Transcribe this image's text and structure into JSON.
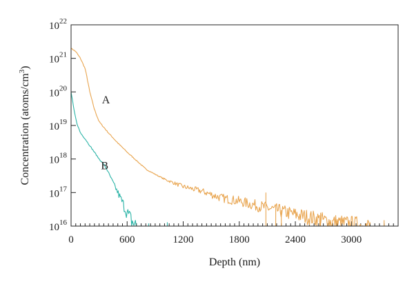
{
  "chart_data": {
    "type": "line",
    "xlabel": "Depth (nm)",
    "ylabel": "Concentration (atoms/cm3)",
    "ylabel_parts": {
      "main": "Concentration (atoms/cm",
      "sup": "3",
      "end": ")"
    },
    "x_scale": "linear",
    "y_scale": "log",
    "xlim": [
      0,
      3500
    ],
    "ylim": [
      1e+16,
      1e+22
    ],
    "xticks": [
      {
        "value": 0,
        "label": "0"
      },
      {
        "value": 600,
        "label": "600"
      },
      {
        "value": 1200,
        "label": "1200"
      },
      {
        "value": 1800,
        "label": "1800"
      },
      {
        "value": 2400,
        "label": "2400"
      },
      {
        "value": 3000,
        "label": "3000"
      }
    ],
    "yticks": [
      {
        "value": 1e+16,
        "base": "10",
        "exp": "16"
      },
      {
        "value": 1e+17,
        "base": "10",
        "exp": "17"
      },
      {
        "value": 1e+18,
        "base": "10",
        "exp": "18"
      },
      {
        "value": 1e+19,
        "base": "10",
        "exp": "19"
      },
      {
        "value": 1e+20,
        "base": "10",
        "exp": "20"
      },
      {
        "value": 1e+21,
        "base": "10",
        "exp": "21"
      },
      {
        "value": 1e+22,
        "base": "10",
        "exp": "22"
      }
    ],
    "grid": false,
    "series": [
      {
        "name": "A",
        "color": "#e8a44e",
        "label_at": {
          "x": 330,
          "y": 4.5e+19
        },
        "points": [
          [
            0,
            2e+21
          ],
          [
            50,
            1.6e+21
          ],
          [
            100,
            1e+21
          ],
          [
            150,
            5e+20
          ],
          [
            180,
            2e+20
          ],
          [
            200,
            1e+20
          ],
          [
            250,
            3e+19
          ],
          [
            300,
            1.3e+19
          ],
          [
            400,
            6e+18
          ],
          [
            500,
            3e+18
          ],
          [
            600,
            1.6e+18
          ],
          [
            700,
            9e+17
          ],
          [
            800,
            5e+17
          ],
          [
            900,
            3.5e+17
          ],
          [
            1000,
            2.5e+17
          ],
          [
            1200,
            1.5e+17
          ],
          [
            1400,
            1.1e+17
          ],
          [
            1600,
            7e+16
          ],
          [
            1800,
            5.5e+16
          ],
          [
            2000,
            4e+16
          ],
          [
            2200,
            3e+16
          ],
          [
            2400,
            2.2e+16
          ],
          [
            2600,
            1.7e+16
          ],
          [
            2800,
            1.3e+16
          ],
          [
            3000,
            1.1e+16
          ],
          [
            3200,
            1e+16
          ]
        ],
        "spikes": [
          {
            "x": 2085,
            "y": 1e+17
          },
          {
            "x": 2190,
            "y": 4e+16
          },
          {
            "x": 2250,
            "y": 3e+16
          },
          {
            "x": 2670,
            "y": 2.5e+16
          },
          {
            "x": 3350,
            "y": 1.5e+16
          }
        ]
      },
      {
        "name": "B",
        "color": "#2ab3a6",
        "label_at": {
          "x": 320,
          "y": 5e+17
        },
        "points": [
          [
            0,
            1e+20
          ],
          [
            30,
            3e+19
          ],
          [
            60,
            1.2e+19
          ],
          [
            100,
            6e+18
          ],
          [
            150,
            4e+18
          ],
          [
            200,
            2.5e+18
          ],
          [
            250,
            1.6e+18
          ],
          [
            300,
            1e+18
          ],
          [
            350,
            7e+17
          ],
          [
            400,
            4e+17
          ],
          [
            450,
            2e+17
          ],
          [
            500,
            1e+17
          ],
          [
            550,
            5e+16
          ],
          [
            600,
            2.5e+16
          ],
          [
            650,
            1.4e+16
          ],
          [
            700,
            1e+16
          ]
        ],
        "spikes": [
          {
            "x": 830,
            "y": 1.2e+16
          },
          {
            "x": 1030,
            "y": 1.3e+16
          }
        ]
      }
    ]
  }
}
